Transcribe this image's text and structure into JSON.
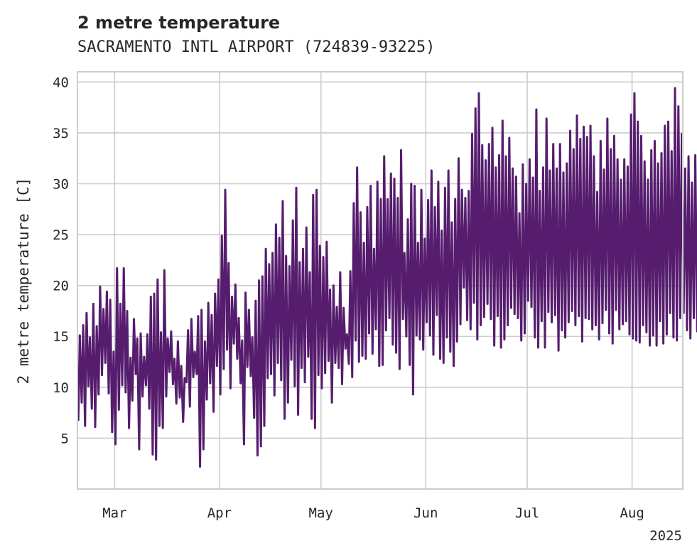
{
  "chart_data": {
    "type": "line",
    "title": "2 metre temperature",
    "subtitle": "SACRAMENTO INTL AIRPORT (724839-93225)",
    "ylabel": "2 metre temperature [C]",
    "xlabel": "",
    "year_label": "2025",
    "ylim": [
      0,
      41
    ],
    "xlim": [
      "2025-02-18",
      "2025-08-16"
    ],
    "grid": true,
    "y_ticks": [
      5,
      10,
      15,
      20,
      25,
      30,
      35,
      40
    ],
    "x_ticks": [
      {
        "date": "2025-03-01",
        "label": "Mar"
      },
      {
        "date": "2025-04-01",
        "label": "Apr"
      },
      {
        "date": "2025-05-01",
        "label": "May"
      },
      {
        "date": "2025-06-01",
        "label": "Jun"
      },
      {
        "date": "2025-07-01",
        "label": "Jul"
      },
      {
        "date": "2025-08-01",
        "label": "Aug"
      }
    ],
    "series": [
      {
        "color": "#561d6e",
        "start_date": "2025-02-18",
        "daily_min": [
          6.7,
          8.5,
          6.2,
          10.1,
          7.9,
          6.1,
          9.3,
          11.2,
          12.4,
          9.4,
          5.6,
          4.4,
          7.8,
          10.2,
          9.5,
          6.0,
          8.7,
          11.3,
          3.9,
          9.1,
          10.2,
          7.9,
          3.4,
          2.9,
          6.2,
          6.0,
          9.1,
          11.5,
          10.3,
          8.4,
          9.0,
          6.6,
          10.5,
          8.1,
          11.0,
          11.3,
          2.2,
          3.9,
          8.8,
          10.4,
          7.6,
          12.1,
          9.3,
          11.8,
          13.7,
          9.9,
          14.3,
          12.8,
          10.4,
          4.4,
          12.0,
          11.1,
          7.0,
          3.3,
          4.2,
          6.2,
          10.9,
          11.3,
          9.2,
          12.4,
          10.7,
          6.9,
          8.5,
          12.7,
          10.1,
          7.3,
          11.9,
          10.5,
          13.0,
          6.9,
          6.0,
          11.2,
          9.9,
          11.4,
          12.6,
          8.5,
          12.4,
          11.9,
          10.3,
          13.8,
          12.3,
          11.0,
          14.6,
          12.5,
          13.1,
          12.8,
          15.3,
          13.3,
          15.7,
          12.1,
          12.2,
          15.6,
          16.8,
          14.2,
          13.4,
          11.8,
          16.7,
          15.0,
          12.2,
          9.3,
          15.1,
          14.7,
          13.7,
          16.4,
          15.1,
          13.2,
          17.1,
          12.8,
          12.4,
          14.9,
          13.5,
          12.1,
          14.5,
          16.2,
          19.8,
          16.6,
          15.7,
          18.3,
          14.7,
          16.1,
          16.9,
          18.2,
          16.7,
          14.1,
          17.0,
          13.9,
          14.7,
          16.1,
          17.8,
          17.2,
          16.8,
          14.6,
          15.3,
          18.5,
          17.9,
          14.9,
          13.9,
          16.5,
          13.9,
          17.4,
          16.4,
          17.1,
          13.6,
          15.6,
          14.9,
          16.4,
          17.5,
          16.1,
          17.0,
          14.5,
          16.8,
          16.7,
          15.7,
          16.1,
          14.7,
          16.3,
          17.6,
          15.3,
          14.3,
          17.6,
          15.7,
          16.2,
          16.5,
          15.2,
          14.8,
          14.6,
          14.4,
          16.1,
          15.4,
          14.1,
          15.1,
          14.1,
          16.5,
          14.3,
          15.2,
          17.3,
          14.9,
          14.6,
          16.8,
          17.3,
          15.6,
          14.8,
          16.8,
          15.5
        ],
        "daily_max": [
          15.1,
          16.1,
          17.3,
          14.9,
          18.2,
          16.0,
          19.9,
          17.7,
          19.4,
          18.6,
          13.5,
          21.7,
          18.2,
          21.7,
          17.5,
          12.9,
          16.7,
          14.8,
          15.3,
          13.0,
          15.2,
          18.9,
          19.2,
          20.6,
          15.4,
          21.5,
          14.8,
          15.5,
          12.8,
          14.5,
          12.1,
          10.9,
          15.6,
          16.7,
          13.5,
          17.0,
          17.6,
          14.5,
          18.3,
          17.1,
          19.2,
          20.6,
          24.9,
          29.4,
          22.2,
          18.9,
          20.1,
          16.8,
          14.6,
          19.3,
          17.6,
          14.9,
          18.5,
          20.5,
          20.9,
          23.6,
          22.1,
          23.2,
          26.0,
          24.7,
          28.3,
          22.9,
          21.9,
          26.4,
          29.6,
          22.3,
          23.6,
          25.7,
          21.3,
          28.9,
          29.4,
          23.9,
          22.8,
          24.3,
          19.6,
          20.0,
          17.9,
          21.3,
          17.8,
          15.2,
          21.4,
          28.1,
          31.6,
          27.2,
          24.2,
          27.7,
          29.8,
          23.6,
          30.2,
          28.5,
          32.7,
          28.5,
          31.0,
          30.5,
          28.6,
          33.3,
          23.2,
          26.5,
          30.0,
          29.8,
          24.2,
          29.4,
          24.6,
          28.4,
          31.3,
          27.7,
          30.2,
          25.4,
          29.6,
          31.3,
          26.2,
          28.5,
          32.5,
          29.4,
          28.6,
          29.3,
          34.9,
          37.4,
          38.9,
          33.8,
          32.3,
          33.9,
          35.5,
          31.6,
          32.8,
          36.2,
          32.7,
          34.5,
          31.5,
          30.7,
          27.1,
          31.9,
          30.0,
          32.4,
          30.6,
          37.3,
          29.3,
          31.6,
          36.4,
          31.3,
          33.9,
          31.5,
          33.9,
          31.1,
          32.0,
          35.2,
          33.4,
          36.7,
          34.4,
          35.6,
          34.6,
          35.7,
          32.7,
          29.2,
          34.2,
          31.4,
          36.4,
          33.4,
          34.7,
          32.4,
          30.4,
          32.4,
          31.7,
          36.8,
          38.9,
          36.1,
          34.7,
          32.2,
          30.4,
          33.3,
          34.2,
          32.0,
          33.0,
          35.7,
          36.1,
          33.2,
          39.4,
          37.6,
          34.9,
          31.5,
          32.7,
          30.1,
          32.8,
          31.2
        ]
      }
    ]
  }
}
